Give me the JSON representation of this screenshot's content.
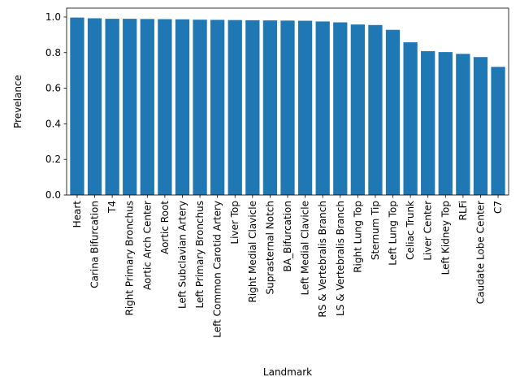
{
  "chart_data": {
    "type": "bar",
    "title": "",
    "xlabel": "Landmark",
    "ylabel": "Prevelance",
    "ylim": [
      0,
      1.05
    ],
    "yticks": [
      "0.0",
      "0.2",
      "0.4",
      "0.6",
      "0.8",
      "1.0"
    ],
    "grid": false,
    "bar_color": "#1f77b4",
    "categories": [
      "Heart",
      "Carina Bifurcation",
      "T4",
      "Right Primary Bronchus",
      "Aortic Arch Center",
      "Aortic Root",
      "Left Subclavian Artery",
      "Left Primary Bronchus",
      "Left Common Carotid Artery",
      "Liver Top",
      "Right Medial Clavicle",
      "Suprasternal Notch",
      "BA_Bifurcation",
      "Left Medial Clavicle",
      "RS & Vertebralis Branch",
      "LS & Vertebralis Branch",
      "Right Lung Top",
      "Sternum Tip",
      "Left Lung Top",
      "Celiac Trunk",
      "Liver Center",
      "Left Kidney Top",
      "RLFi",
      "Caudate Lobe Center",
      "C7"
    ],
    "values": [
      0.997,
      0.993,
      0.99,
      0.99,
      0.989,
      0.988,
      0.987,
      0.985,
      0.984,
      0.983,
      0.982,
      0.981,
      0.98,
      0.979,
      0.975,
      0.97,
      0.958,
      0.955,
      0.928,
      0.858,
      0.808,
      0.803,
      0.793,
      0.775,
      0.72
    ]
  }
}
